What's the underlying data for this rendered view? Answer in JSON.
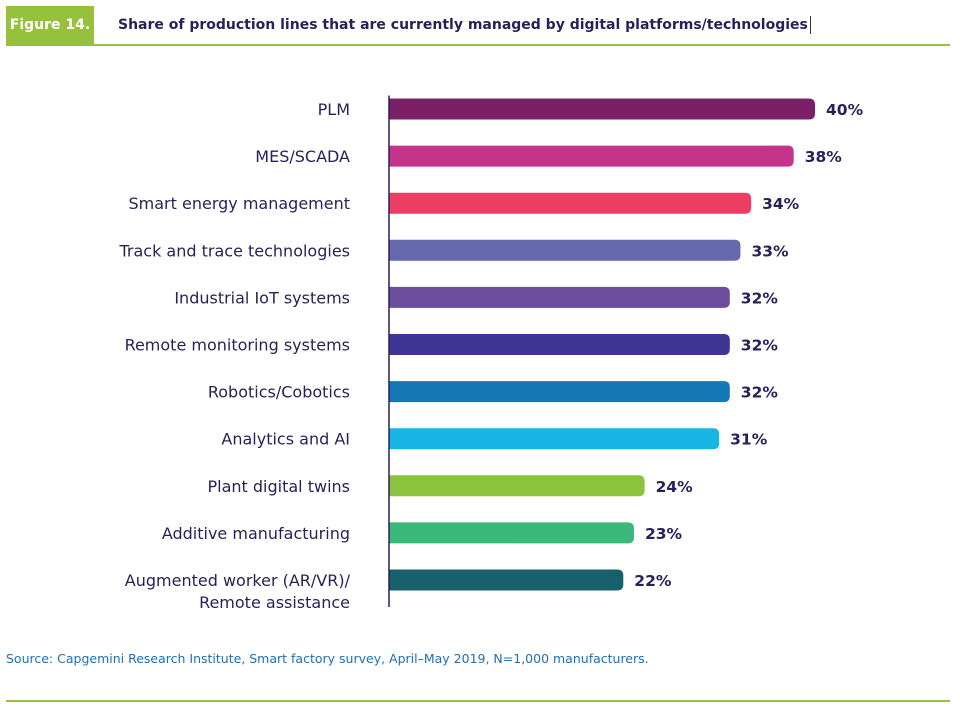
{
  "figure": {
    "label": "Figure 14.",
    "title": "Share of production lines that are currently managed by digital platforms/technologies"
  },
  "source": "Source: Capgemini Research Institute, Smart factory survey, April–May 2019, N=1,000 manufacturers.",
  "chart_data": {
    "type": "bar",
    "orientation": "horizontal",
    "title": "Share of production lines that are currently managed by digital platforms/technologies",
    "xlabel": "",
    "ylabel": "",
    "unit": "%",
    "xlim": [
      0,
      40
    ],
    "grid": false,
    "categories": [
      "PLM",
      "MES/SCADA",
      "Smart energy management",
      "Track and trace technologies",
      "Industrial IoT systems",
      "Remote monitoring systems",
      "Robotics/Cobotics",
      "Analytics and AI",
      "Plant digital twins",
      "Additive manufacturing",
      "Augmented worker (AR/VR)/\nRemote assistance"
    ],
    "values": [
      40,
      38,
      34,
      33,
      32,
      32,
      32,
      31,
      24,
      23,
      22
    ],
    "value_labels": [
      "40%",
      "38%",
      "34%",
      "33%",
      "32%",
      "32%",
      "32%",
      "31%",
      "24%",
      "23%",
      "22%"
    ],
    "colors": [
      "#7b2066",
      "#c5348b",
      "#ea3f62",
      "#6669ad",
      "#6a4d9c",
      "#3e3595",
      "#1378b4",
      "#18b6e4",
      "#8bc23e",
      "#3bb97a",
      "#17616c"
    ]
  }
}
